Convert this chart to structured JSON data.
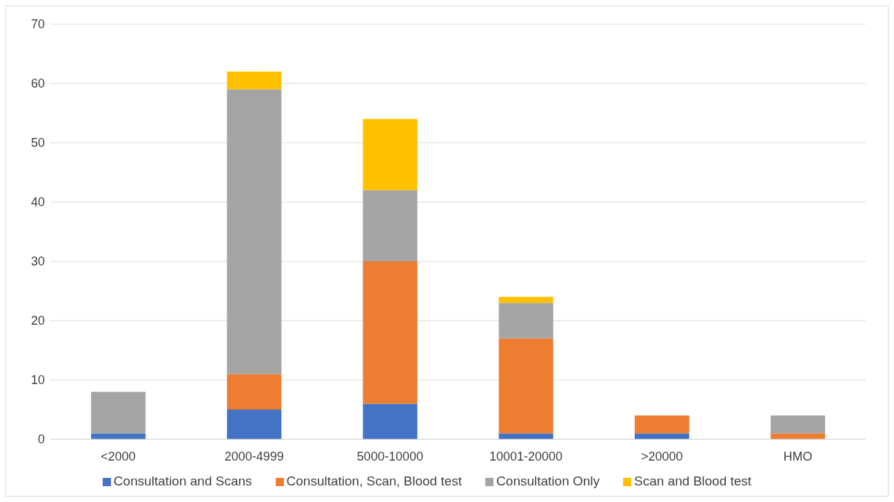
{
  "chart_data": {
    "type": "bar",
    "stacked": true,
    "categories": [
      "<2000",
      "2000-4999",
      "5000-10000",
      "10001-20000",
      ">20000",
      "HMO"
    ],
    "series": [
      {
        "name": "Consultation and Scans",
        "color": "#4472c4",
        "values": [
          1,
          5,
          6,
          1,
          1,
          0
        ]
      },
      {
        "name": "Consultation, Scan, Blood test",
        "color": "#ed7d31",
        "values": [
          0,
          6,
          24,
          16,
          3,
          1
        ]
      },
      {
        "name": "Consultation Only",
        "color": "#a5a5a5",
        "values": [
          7,
          48,
          12,
          6,
          0,
          3
        ]
      },
      {
        "name": "Scan and Blood test",
        "color": "#ffc000",
        "values": [
          0,
          3,
          12,
          1,
          0,
          0
        ]
      }
    ],
    "ylim": [
      0,
      70
    ],
    "yticks": [
      0,
      10,
      20,
      30,
      40,
      50,
      60,
      70
    ],
    "grid": "y",
    "legend": "bottom"
  }
}
